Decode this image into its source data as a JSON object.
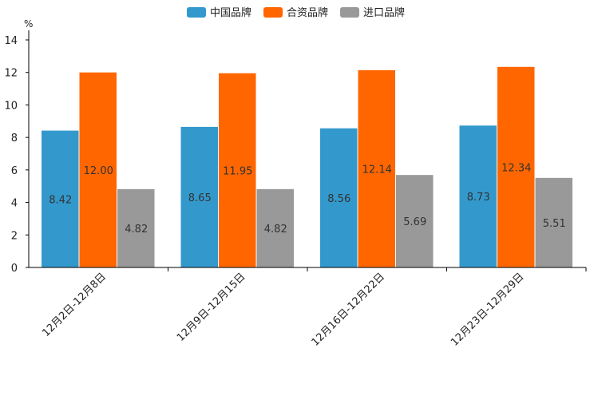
{
  "chart_data": {
    "type": "bar",
    "unit": "%",
    "categories": [
      "12月2日-12月8日",
      "12月9日-12月15日",
      "12月16日-12月22日",
      "12月23日-12月29日"
    ],
    "series": [
      {
        "name": "中国品牌",
        "color": "#3399cc",
        "values": [
          8.42,
          8.65,
          8.56,
          8.73
        ],
        "labels": [
          "8.42",
          "8.65",
          "8.56",
          "8.73"
        ]
      },
      {
        "name": "合资品牌",
        "color": "#ff6600",
        "values": [
          12.0,
          11.95,
          12.14,
          12.34
        ],
        "labels": [
          "12.00",
          "11.95",
          "12.14",
          "12.34"
        ]
      },
      {
        "name": "进口品牌",
        "color": "#999999",
        "values": [
          4.82,
          4.82,
          5.69,
          5.51
        ],
        "labels": [
          "4.82",
          "4.82",
          "5.69",
          "5.51"
        ]
      }
    ],
    "ylim": [
      0,
      14
    ],
    "yticks": [
      "0",
      "2",
      "4",
      "6",
      "8",
      "10",
      "12",
      "14"
    ],
    "legend_position": "top-center",
    "grid": false
  }
}
